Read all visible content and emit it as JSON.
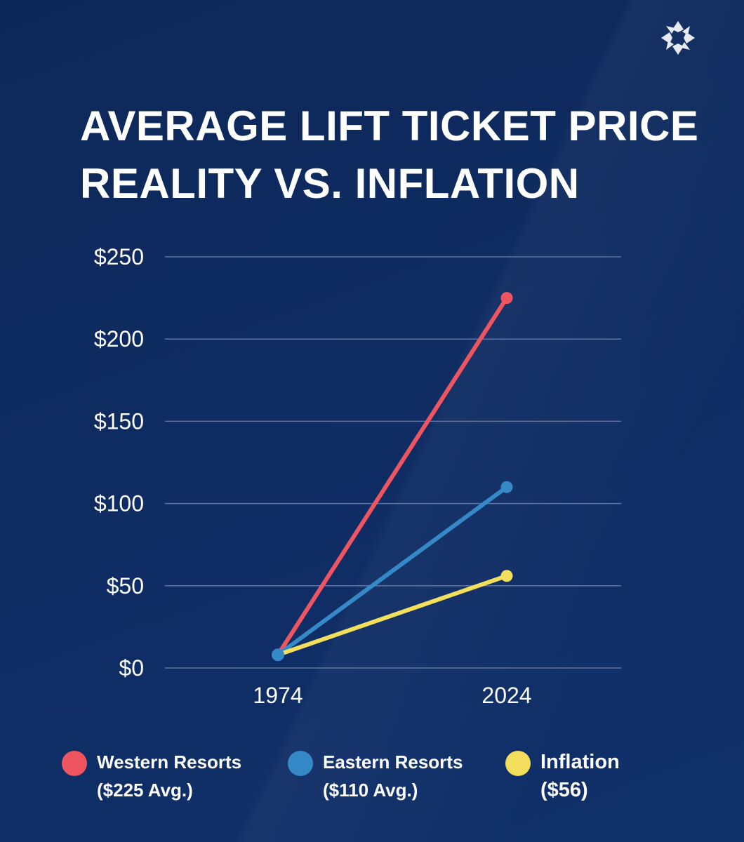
{
  "header": {
    "title": "AVERAGE LIFT TICKET PRICE",
    "subtitle": "REALITY VS. INFLATION",
    "logo_icon": "star-burst-icon"
  },
  "colors": {
    "background": "#0e2a5e",
    "western": "#ef5560",
    "eastern": "#3589c6",
    "inflation": "#f4df5d",
    "grid": "#5f76a4"
  },
  "chart_data": {
    "type": "line",
    "x": [
      "1974",
      "2024"
    ],
    "ylim": [
      0,
      250
    ],
    "yticks": [
      0,
      50,
      100,
      150,
      200,
      250
    ],
    "ytick_labels": [
      "$0",
      "$50",
      "$100",
      "$150",
      "$200",
      "$250"
    ],
    "grid": true,
    "legend_position": "bottom",
    "series": [
      {
        "name": "Western Resorts ($225 Avg.)",
        "color": "#ef5560",
        "values": [
          8,
          225
        ]
      },
      {
        "name": "Eastern Resorts ($110 Avg.)",
        "color": "#3589c6",
        "values": [
          8,
          110
        ]
      },
      {
        "name": "Inflation ($56)",
        "color": "#f4df5d",
        "values": [
          8,
          56
        ]
      }
    ]
  },
  "legend": [
    {
      "label": "Western Resorts\n($225 Avg.)",
      "color": "#ef5560"
    },
    {
      "label": "Eastern Resorts\n($110 Avg.)",
      "color": "#3589c6"
    },
    {
      "label": "Inflation\n($56)",
      "color": "#f4df5d"
    }
  ]
}
